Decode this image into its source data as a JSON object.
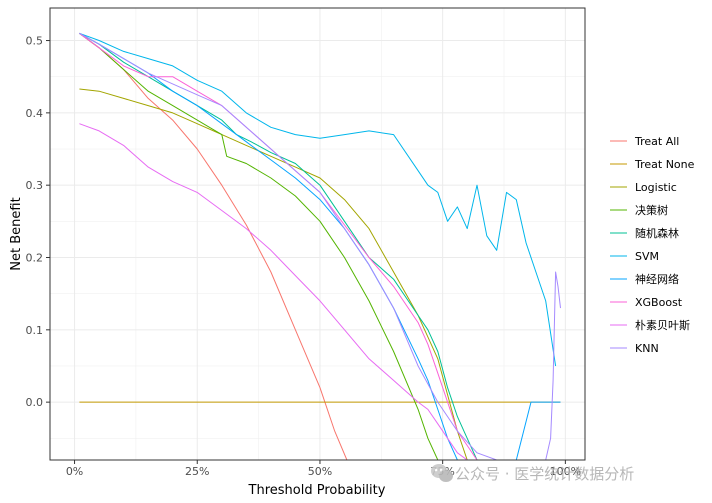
{
  "watermark": {
    "text": "公众号 · 医学统计数据分析",
    "icon": "wechat-icon"
  },
  "chart_data": {
    "type": "line",
    "title": "",
    "xlabel": "Threshold Probability",
    "ylabel": "Net Benefit",
    "xlim": [
      -0.05,
      1.04
    ],
    "ylim": [
      -0.08,
      0.545
    ],
    "x_ticks": [
      0,
      0.25,
      0.5,
      0.75,
      1.0
    ],
    "x_tick_labels": [
      "0%",
      "25%",
      "50%",
      "75%",
      "100%"
    ],
    "y_ticks": [
      0.0,
      0.1,
      0.2,
      0.3,
      0.4,
      0.5
    ],
    "y_tick_labels": [
      "0.0",
      "0.1",
      "0.2",
      "0.3",
      "0.4",
      "0.5"
    ],
    "grid": true,
    "legend_position": "right",
    "series": [
      {
        "name": "Treat All",
        "color": "#F8766D",
        "x": [
          0.01,
          0.05,
          0.1,
          0.15,
          0.2,
          0.25,
          0.3,
          0.35,
          0.4,
          0.45,
          0.5,
          0.53,
          0.555
        ],
        "y": [
          0.51,
          0.49,
          0.46,
          0.42,
          0.39,
          0.35,
          0.3,
          0.245,
          0.18,
          0.1,
          0.02,
          -0.04,
          -0.08
        ]
      },
      {
        "name": "Treat None",
        "color": "#C49A00",
        "x": [
          0.01,
          0.99
        ],
        "y": [
          0.0,
          0.0
        ]
      },
      {
        "name": "Logistic",
        "color": "#A3A500",
        "x": [
          0.01,
          0.05,
          0.1,
          0.15,
          0.2,
          0.25,
          0.3,
          0.35,
          0.4,
          0.45,
          0.5,
          0.55,
          0.6,
          0.65,
          0.7,
          0.74,
          0.76,
          0.78,
          0.8
        ],
        "y": [
          0.433,
          0.43,
          0.42,
          0.41,
          0.4,
          0.385,
          0.37,
          0.355,
          0.34,
          0.325,
          0.31,
          0.28,
          0.24,
          0.18,
          0.12,
          0.06,
          0.01,
          -0.04,
          -0.08
        ]
      },
      {
        "name": "决策树",
        "color": "#53B400",
        "x": [
          0.01,
          0.05,
          0.1,
          0.15,
          0.2,
          0.25,
          0.3,
          0.31,
          0.35,
          0.4,
          0.45,
          0.5,
          0.55,
          0.6,
          0.65,
          0.7,
          0.72,
          0.74
        ],
        "y": [
          0.51,
          0.49,
          0.46,
          0.43,
          0.41,
          0.39,
          0.37,
          0.34,
          0.33,
          0.31,
          0.285,
          0.25,
          0.2,
          0.14,
          0.07,
          -0.01,
          -0.05,
          -0.08
        ]
      },
      {
        "name": "随机森林",
        "color": "#00C094",
        "x": [
          0.01,
          0.05,
          0.1,
          0.15,
          0.2,
          0.25,
          0.3,
          0.33,
          0.36,
          0.4,
          0.45,
          0.5,
          0.55,
          0.6,
          0.65,
          0.68,
          0.7,
          0.72,
          0.74,
          0.76,
          0.78,
          0.8,
          0.82
        ],
        "y": [
          0.51,
          0.495,
          0.47,
          0.45,
          0.43,
          0.41,
          0.39,
          0.37,
          0.36,
          0.345,
          0.33,
          0.3,
          0.25,
          0.2,
          0.17,
          0.14,
          0.12,
          0.1,
          0.07,
          0.02,
          -0.02,
          -0.05,
          -0.08
        ]
      },
      {
        "name": "SVM",
        "color": "#00B6EB",
        "x": [
          0.01,
          0.05,
          0.1,
          0.15,
          0.2,
          0.25,
          0.3,
          0.35,
          0.4,
          0.45,
          0.5,
          0.55,
          0.6,
          0.65,
          0.7,
          0.72,
          0.74,
          0.76,
          0.78,
          0.8,
          0.82,
          0.84,
          0.86,
          0.88,
          0.9,
          0.92,
          0.94,
          0.96,
          0.98
        ],
        "y": [
          0.51,
          0.5,
          0.485,
          0.475,
          0.465,
          0.445,
          0.43,
          0.4,
          0.38,
          0.37,
          0.365,
          0.37,
          0.375,
          0.37,
          0.32,
          0.3,
          0.29,
          0.25,
          0.27,
          0.24,
          0.3,
          0.23,
          0.21,
          0.29,
          0.28,
          0.22,
          0.18,
          0.14,
          0.05
        ]
      },
      {
        "name": "神经网络",
        "color": "#06A4FF",
        "x": [
          0.01,
          0.05,
          0.1,
          0.15,
          0.2,
          0.25,
          0.3,
          0.35,
          0.4,
          0.45,
          0.5,
          0.55,
          0.6,
          0.65,
          0.7,
          0.72,
          0.74,
          0.76,
          0.78,
          0.8,
          0.85,
          0.9,
          0.93,
          0.96,
          0.99
        ],
        "y": [
          0.51,
          0.495,
          0.475,
          0.455,
          0.43,
          0.41,
          0.385,
          0.36,
          0.335,
          0.31,
          0.28,
          0.24,
          0.19,
          0.13,
          0.06,
          0.03,
          -0.01,
          -0.05,
          -0.08,
          -0.08,
          -0.08,
          -0.08,
          0.0,
          0.0,
          0.0
        ]
      },
      {
        "name": "XGBoost",
        "color": "#FB61D7",
        "x": [
          0.01,
          0.05,
          0.1,
          0.15,
          0.2,
          0.25,
          0.3,
          0.35,
          0.4,
          0.45,
          0.5,
          0.55,
          0.6,
          0.65,
          0.7,
          0.72,
          0.74,
          0.76,
          0.78,
          0.8,
          0.82
        ],
        "y": [
          0.51,
          0.49,
          0.465,
          0.45,
          0.45,
          0.43,
          0.41,
          0.38,
          0.35,
          0.32,
          0.29,
          0.245,
          0.2,
          0.16,
          0.11,
          0.08,
          0.04,
          0.0,
          -0.04,
          -0.06,
          -0.08
        ]
      },
      {
        "name": "朴素贝叶斯",
        "color": "#E76BF3",
        "x": [
          0.01,
          0.05,
          0.1,
          0.15,
          0.2,
          0.25,
          0.3,
          0.35,
          0.4,
          0.45,
          0.5,
          0.55,
          0.6,
          0.65,
          0.7,
          0.72,
          0.74,
          0.76,
          0.78,
          0.8
        ],
        "y": [
          0.385,
          0.375,
          0.355,
          0.325,
          0.305,
          0.29,
          0.265,
          0.24,
          0.21,
          0.175,
          0.14,
          0.1,
          0.06,
          0.03,
          0.0,
          -0.01,
          -0.03,
          -0.05,
          -0.07,
          -0.08
        ]
      },
      {
        "name": "KNN",
        "color": "#A58AFF",
        "x": [
          0.01,
          0.05,
          0.1,
          0.15,
          0.2,
          0.25,
          0.3,
          0.35,
          0.4,
          0.45,
          0.5,
          0.55,
          0.6,
          0.65,
          0.7,
          0.74,
          0.78,
          0.82,
          0.86,
          0.9,
          0.93,
          0.95,
          0.96,
          0.97,
          0.975,
          0.98,
          0.985,
          0.99
        ],
        "y": [
          0.51,
          0.495,
          0.475,
          0.455,
          0.44,
          0.425,
          0.41,
          0.38,
          0.35,
          0.32,
          0.29,
          0.24,
          0.19,
          0.13,
          0.05,
          0.0,
          -0.04,
          -0.07,
          -0.08,
          -0.08,
          -0.08,
          -0.08,
          -0.08,
          -0.05,
          0.03,
          0.18,
          0.16,
          0.13
        ]
      }
    ]
  }
}
